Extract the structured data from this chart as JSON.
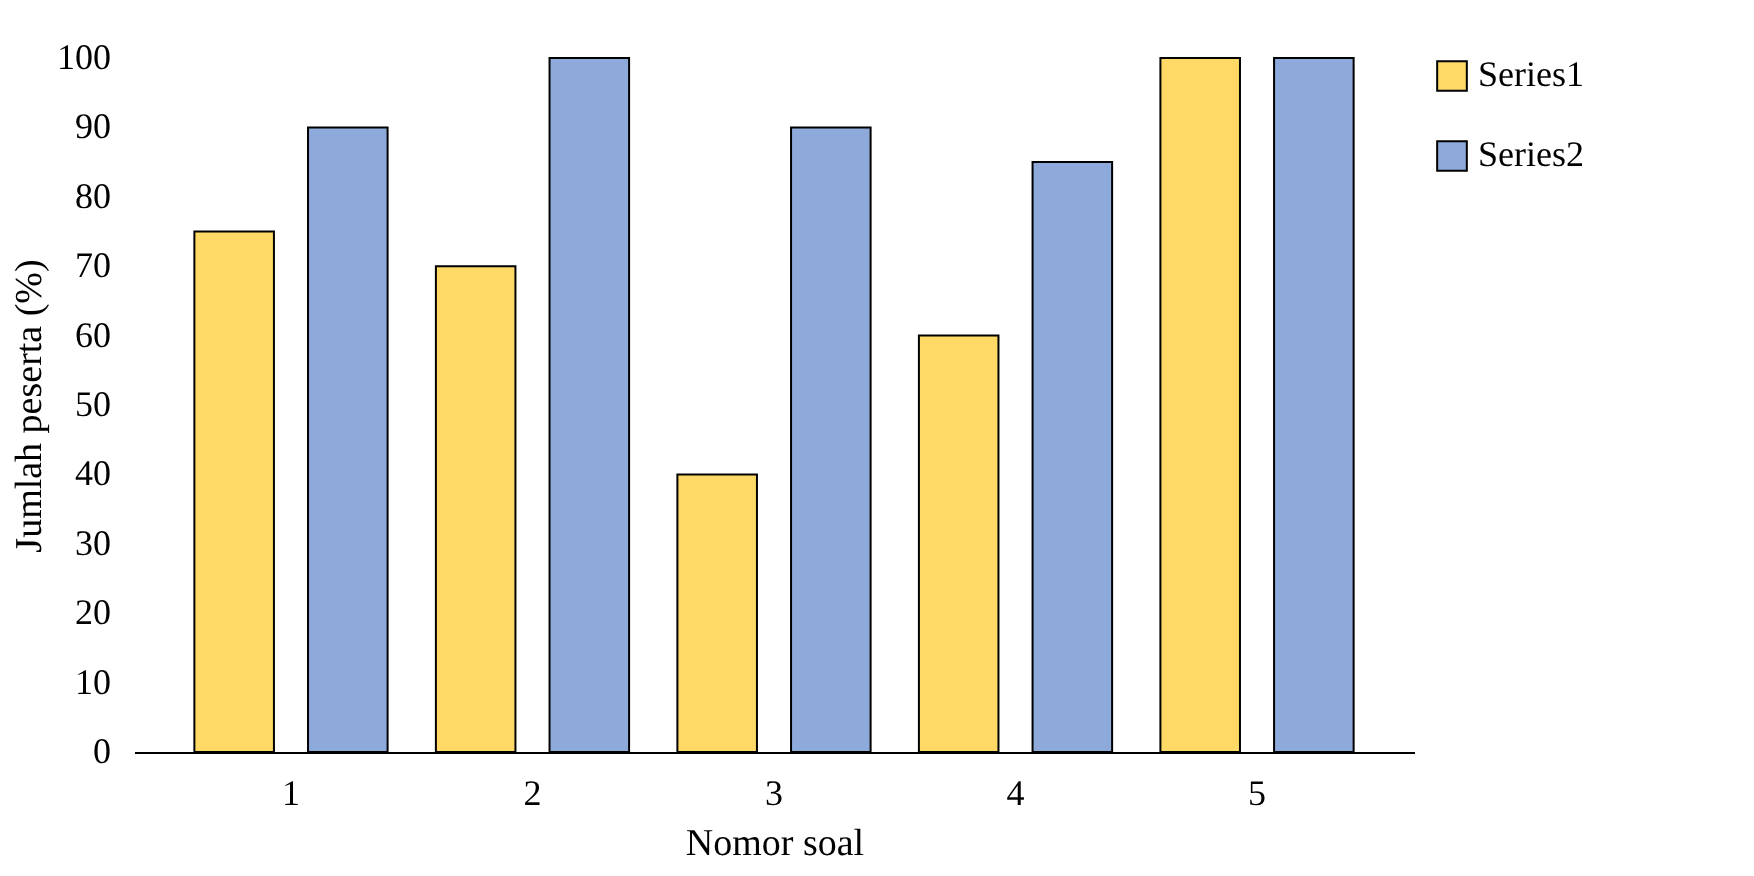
{
  "chart_data": {
    "type": "bar",
    "xlabel": "Nomor soal",
    "ylabel": "Jumlah peserta (%)",
    "categories": [
      "1",
      "2",
      "3",
      "4",
      "5"
    ],
    "series": [
      {
        "name": "Series1",
        "color": "#ffd966",
        "values": [
          75,
          70,
          40,
          60,
          100
        ]
      },
      {
        "name": "Series2",
        "color": "#8eaadb",
        "values": [
          90,
          100,
          90,
          85,
          100
        ]
      }
    ],
    "ylim": [
      0,
      100
    ],
    "yticks": [
      0,
      10,
      20,
      30,
      40,
      50,
      60,
      70,
      80,
      90,
      100
    ],
    "grid": false,
    "legend": "right"
  }
}
